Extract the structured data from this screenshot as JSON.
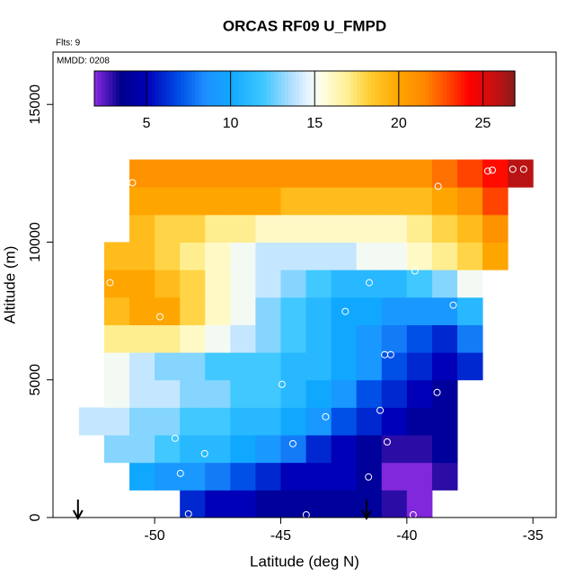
{
  "chart_data": {
    "type": "heatmap",
    "title": "ORCAS RF09 U_FMPD",
    "subtitle": "Flts: 9",
    "annotation": "MMDD: 0208",
    "x_label": "Latitude (deg N)",
    "y_label": "Altitude (m)",
    "xlim": [
      -54.03,
      -34.08
    ],
    "ylim": [
      0,
      16900
    ],
    "xticks": [
      -50,
      -45,
      -40,
      -35
    ],
    "yticks": [
      0,
      5000,
      10000,
      15000
    ],
    "x_edges": [
      -53,
      -52,
      -51,
      -50,
      -49,
      -48,
      -47,
      -46,
      -45,
      -44,
      -43,
      -42,
      -41,
      -40,
      -39,
      -38,
      -37,
      -36,
      -35
    ],
    "y_edges": [
      0,
      1000,
      2000,
      3000,
      4000,
      5000,
      6000,
      7000,
      8000,
      9000,
      10000,
      11000,
      12000,
      13000
    ],
    "z": [
      [
        null,
        null,
        null,
        null,
        6,
        5,
        5,
        4,
        4,
        4,
        4,
        4,
        3,
        2,
        null,
        null,
        null,
        null
      ],
      [
        null,
        null,
        10,
        9,
        9,
        8,
        7,
        6,
        5,
        5,
        5,
        4,
        2,
        2,
        3,
        null,
        null,
        null
      ],
      [
        null,
        13,
        13,
        12,
        11,
        11,
        10,
        9,
        8,
        6,
        5,
        4,
        3,
        3,
        4,
        null,
        null,
        null
      ],
      [
        14,
        14,
        13,
        13,
        12,
        12,
        11,
        11,
        10,
        9,
        7,
        6,
        5,
        4,
        4,
        null,
        null,
        null
      ],
      [
        null,
        15,
        14,
        14,
        13,
        13,
        12,
        12,
        11,
        10,
        9,
        7,
        6,
        5,
        4,
        null,
        null,
        null
      ],
      [
        null,
        15,
        14,
        13,
        13,
        12,
        12,
        12,
        11,
        11,
        10,
        9,
        7,
        6,
        5,
        6,
        null,
        null
      ],
      [
        null,
        17,
        17,
        17,
        16,
        15,
        14,
        13,
        12,
        11,
        10,
        9,
        8,
        7,
        6,
        8,
        null,
        null
      ],
      [
        null,
        19,
        20,
        20,
        18,
        16,
        15,
        13,
        12,
        11,
        10,
        10,
        9,
        9,
        9,
        11,
        null,
        null
      ],
      [
        null,
        20,
        20,
        19,
        18,
        16,
        15,
        14,
        13,
        12,
        11,
        11,
        11,
        12,
        13,
        15,
        null,
        null
      ],
      [
        null,
        19,
        19,
        18,
        17,
        16,
        15,
        14,
        14,
        14,
        14,
        15,
        15,
        16,
        17,
        18,
        20,
        null
      ],
      [
        null,
        null,
        19,
        18,
        18,
        17,
        17,
        16,
        16,
        16,
        16,
        16,
        16,
        17,
        18,
        19,
        21,
        null
      ],
      [
        null,
        null,
        20,
        20,
        20,
        20,
        20,
        20,
        19,
        19,
        19,
        19,
        19,
        19,
        20,
        21,
        23,
        null
      ],
      [
        null,
        null,
        21,
        21,
        21,
        21,
        21,
        21,
        21,
        21,
        21,
        21,
        21,
        21,
        22,
        23,
        24,
        26
      ]
    ],
    "points": {
      "x": [
        -50.88,
        -38.76,
        -36.79,
        -36.61,
        -35.8,
        -35.37,
        -51.77,
        -49.79,
        -41.49,
        -39.68,
        -42.44,
        -38.16,
        -40.88,
        -40.64,
        -44.95,
        -38.8,
        -43.22,
        -41.06,
        -49.19,
        -44.52,
        -40.78,
        -48.02,
        -48.98,
        -41.52,
        -48.66,
        -43.99,
        -39.75
      ],
      "y": [
        12157,
        12026,
        12582,
        12614,
        12647,
        12647,
        8529,
        7288,
        8529,
        8954,
        7484,
        7712,
        5915,
        5915,
        4837,
        4542,
        3660,
        3889,
        2876,
        2680,
        2745,
        2320,
        1601,
        1471,
        131,
        98,
        98
      ],
      "color": "#ffffff"
    },
    "arrows_x": [
      -53.04,
      -41.6
    ],
    "colorbar_lim": [
      1.9,
      26.9
    ],
    "colorbar_ticks": [
      5,
      10,
      15,
      20,
      25
    ],
    "colorscale": [
      [
        1.9,
        "#8a2be2"
      ],
      [
        3.5,
        "#00008b"
      ],
      [
        5,
        "#0000b8"
      ],
      [
        7,
        "#0050e8"
      ],
      [
        8.5,
        "#1e90ff"
      ],
      [
        10,
        "#10a8ff"
      ],
      [
        12,
        "#40c8ff"
      ],
      [
        13.5,
        "#a8dcff"
      ],
      [
        14.6,
        "#e6f4ff"
      ],
      [
        15.4,
        "#ffffe6"
      ],
      [
        17,
        "#ffee90"
      ],
      [
        18.3,
        "#ffcc30"
      ],
      [
        20,
        "#ffa500"
      ],
      [
        21.5,
        "#ff8800"
      ],
      [
        23,
        "#ff4400"
      ],
      [
        24.2,
        "#ff0000"
      ],
      [
        25.7,
        "#c81010"
      ],
      [
        26.9,
        "#8b1a1a"
      ]
    ]
  }
}
